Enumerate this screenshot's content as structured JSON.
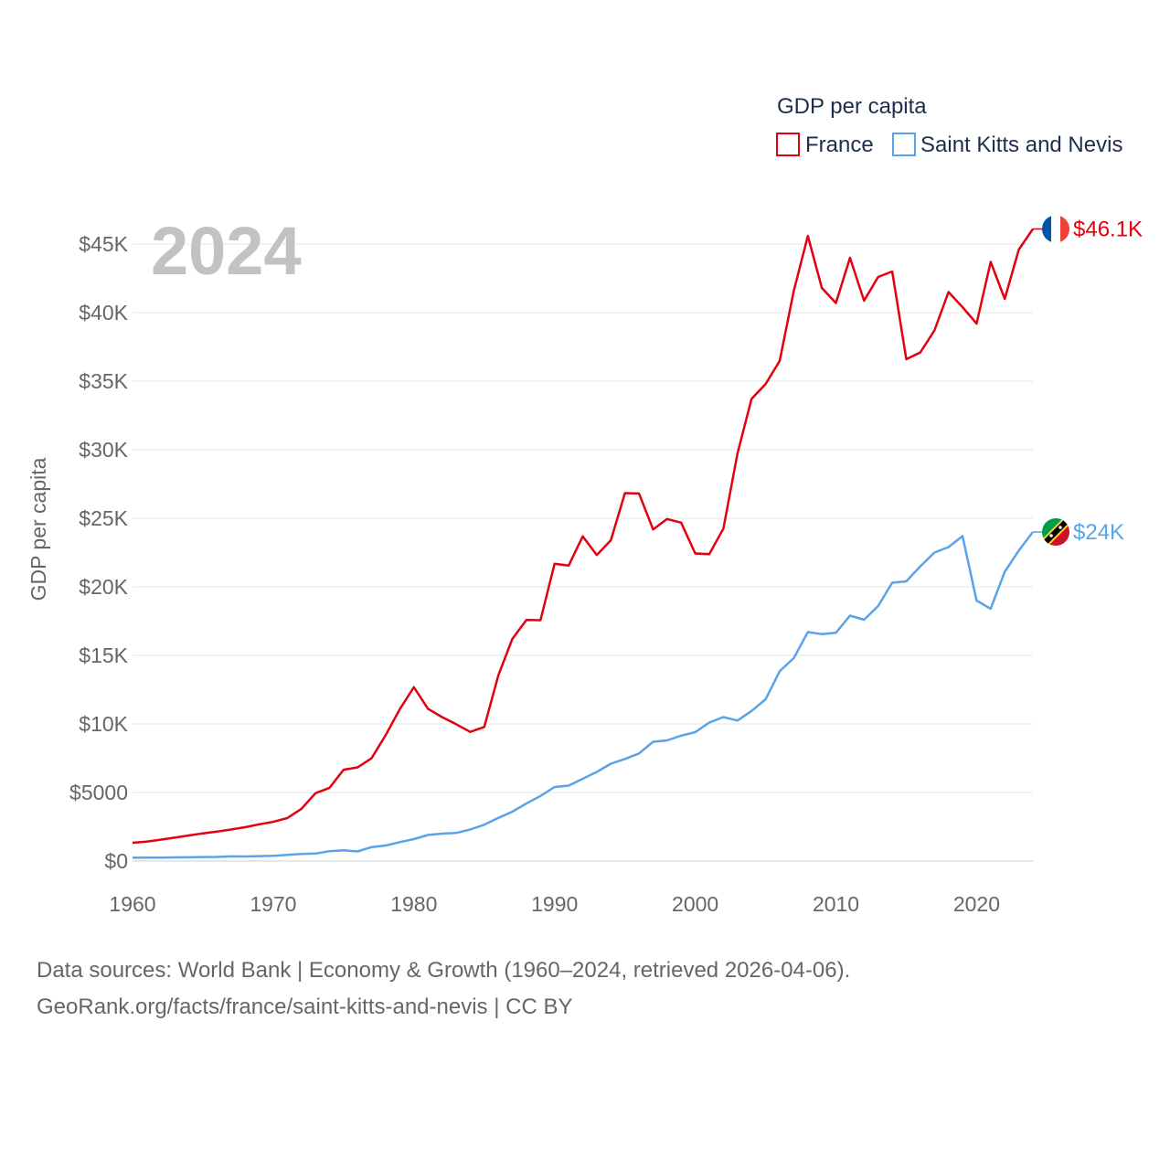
{
  "chart_data": {
    "type": "line",
    "title": "GDP per capita",
    "ylabel": "GDP per capita",
    "xlabel": "",
    "year_label": "2024",
    "xlim": [
      1960,
      2024
    ],
    "ylim": [
      0,
      47000
    ],
    "x_ticks": [
      1960,
      1970,
      1980,
      1990,
      2000,
      2010,
      2020
    ],
    "y_ticks": [
      {
        "value": 0,
        "label": "$0"
      },
      {
        "value": 5000,
        "label": "$5000"
      },
      {
        "value": 10000,
        "label": "$10K"
      },
      {
        "value": 15000,
        "label": "$15K"
      },
      {
        "value": 20000,
        "label": "$20K"
      },
      {
        "value": 25000,
        "label": "$25K"
      },
      {
        "value": 30000,
        "label": "$30K"
      },
      {
        "value": 35000,
        "label": "$35K"
      },
      {
        "value": 40000,
        "label": "$40K"
      },
      {
        "value": 45000,
        "label": "$45K"
      }
    ],
    "grid": true,
    "legend_position": "top-right",
    "x": [
      1960,
      1961,
      1962,
      1963,
      1964,
      1965,
      1966,
      1967,
      1968,
      1969,
      1970,
      1971,
      1972,
      1973,
      1974,
      1975,
      1976,
      1977,
      1978,
      1979,
      1980,
      1981,
      1982,
      1983,
      1984,
      1985,
      1986,
      1987,
      1988,
      1989,
      1990,
      1991,
      1992,
      1993,
      1994,
      1995,
      1996,
      1997,
      1998,
      1999,
      2000,
      2001,
      2002,
      2003,
      2004,
      2005,
      2006,
      2007,
      2008,
      2009,
      2010,
      2011,
      2012,
      2013,
      2014,
      2015,
      2016,
      2017,
      2018,
      2019,
      2020,
      2021,
      2022,
      2023,
      2024
    ],
    "series": [
      {
        "name": "France",
        "color": "#e3000f",
        "end_label": "$46.1K",
        "flag": "france-flag",
        "values": [
          1330,
          1420,
          1560,
          1710,
          1870,
          2020,
          2150,
          2300,
          2470,
          2680,
          2860,
          3130,
          3810,
          4950,
          5340,
          6660,
          6830,
          7510,
          9190,
          11080,
          12680,
          11110,
          10500,
          9980,
          9420,
          9780,
          13550,
          16200,
          17580,
          17570,
          21680,
          21550,
          23680,
          22320,
          23400,
          26830,
          26810,
          24190,
          24950,
          24680,
          22430,
          22390,
          24250,
          29720,
          33710,
          34790,
          36480,
          41580,
          45600,
          41800,
          40700,
          44000,
          40870,
          42600,
          43000,
          36600,
          37100,
          38700,
          41500,
          40400,
          39200,
          43700,
          41000,
          44600,
          46100
        ]
      },
      {
        "name": "Saint Kitts and Nevis",
        "color": "#5aa3e8",
        "end_label": "$24K",
        "flag": "saint-kitts-flag",
        "values": [
          240,
          250,
          255,
          265,
          275,
          290,
          300,
          340,
          330,
          360,
          380,
          450,
          520,
          550,
          720,
          780,
          700,
          1020,
          1130,
          1380,
          1600,
          1900,
          2000,
          2050,
          2300,
          2650,
          3150,
          3600,
          4200,
          4750,
          5400,
          5500,
          6000,
          6500,
          7100,
          7450,
          7850,
          8700,
          8800,
          9150,
          9400,
          10100,
          10500,
          10250,
          10950,
          11800,
          13850,
          14800,
          16700,
          16550,
          16650,
          17900,
          17600,
          18600,
          20300,
          20400,
          21500,
          22500,
          22900,
          23700,
          19000,
          18400,
          21100,
          22650,
          24000
        ]
      }
    ]
  },
  "legend": {
    "title": "GDP per capita",
    "items": [
      "France",
      "Saint Kitts and Nevis"
    ]
  },
  "source": {
    "line1": "Data sources: World Bank | Economy & Growth (1960–2024, retrieved 2026-04-06).",
    "line2": "GeoRank.org/facts/france/saint-kitts-and-nevis | CC BY"
  }
}
